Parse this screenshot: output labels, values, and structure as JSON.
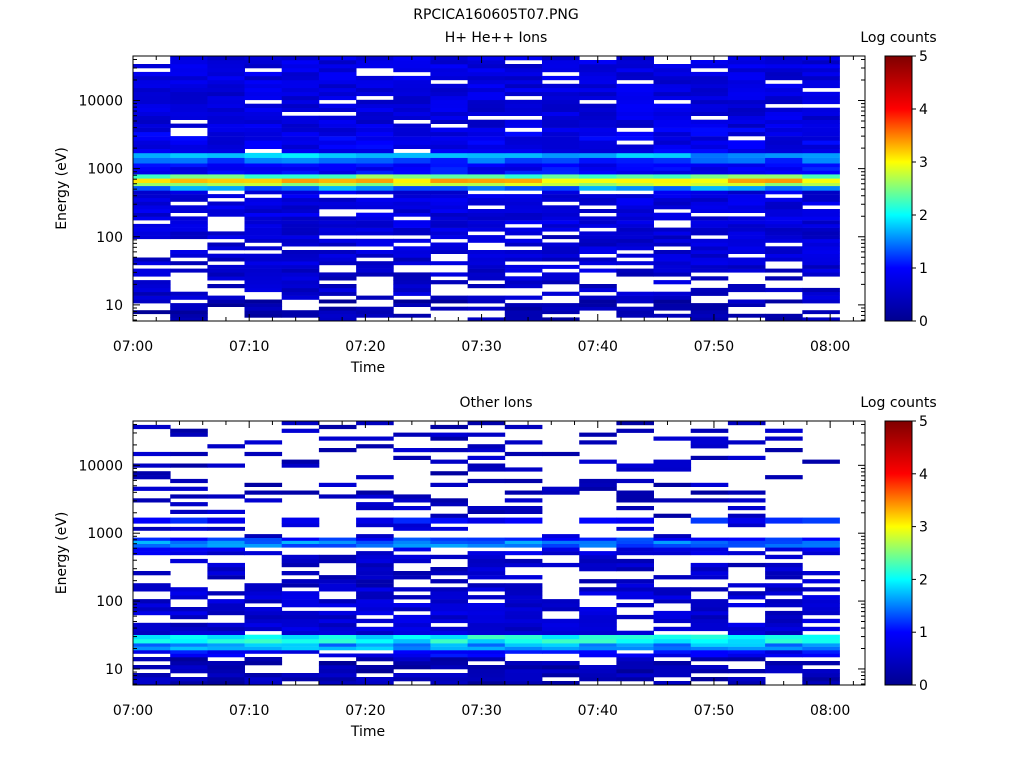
{
  "page_title": "RPCICA160605T07.PNG",
  "colorscale": [
    "#00008f",
    "#0000ff",
    "#00ffff",
    "#ffff00",
    "#ff0000",
    "#7f0000"
  ],
  "chart_data": [
    {
      "type": "heatmap",
      "title": "H+ He++ Ions",
      "xlabel": "Time",
      "ylabel": "Energy (eV)",
      "colorbar_label": "Log counts",
      "yscale": "log",
      "ylim": [
        5.8,
        45000
      ],
      "yticks": [
        10,
        100,
        1000,
        10000
      ],
      "ytick_labels": [
        "10",
        "100",
        "1000",
        "10000"
      ],
      "xlim": [
        "07:00",
        "08:03"
      ],
      "xticks": [
        "07:00",
        "07:10",
        "07:20",
        "07:30",
        "07:40",
        "07:50",
        "08:00"
      ],
      "time_bins": 19,
      "time_bin_minutes": 3.2,
      "clim": [
        0,
        5
      ],
      "cbar_ticks": [
        "0",
        "1",
        "2",
        "3",
        "4",
        "5"
      ],
      "bands": [
        {
          "emin": 5.8,
          "emax": 12,
          "mean": 0.3,
          "fill": 0.6
        },
        {
          "emin": 12,
          "emax": 30,
          "mean": 0.55,
          "fill": 0.6
        },
        {
          "emin": 30,
          "emax": 120,
          "mean": 0.6,
          "fill": 0.72
        },
        {
          "emin": 120,
          "emax": 480,
          "mean": 0.7,
          "fill": 0.85
        },
        {
          "emin": 480,
          "emax": 560,
          "mean": 1.5,
          "fill": 1.0
        },
        {
          "emin": 560,
          "emax": 620,
          "mean": 2.7,
          "fill": 1.0
        },
        {
          "emin": 620,
          "emax": 720,
          "mean": 3.2,
          "fill": 1.0
        },
        {
          "emin": 720,
          "emax": 830,
          "mean": 2.4,
          "fill": 1.0
        },
        {
          "emin": 830,
          "emax": 1200,
          "mean": 0.9,
          "fill": 1.0
        },
        {
          "emin": 1200,
          "emax": 1450,
          "mean": 1.3,
          "fill": 1.0
        },
        {
          "emin": 1450,
          "emax": 1700,
          "mean": 1.7,
          "fill": 1.0
        },
        {
          "emin": 1700,
          "emax": 4000,
          "mean": 0.8,
          "fill": 0.9
        },
        {
          "emin": 4000,
          "emax": 45000,
          "mean": 0.7,
          "fill": 0.88
        }
      ]
    },
    {
      "type": "heatmap",
      "title": "Other Ions",
      "xlabel": "Time",
      "ylabel": "Energy (eV)",
      "colorbar_label": "Log counts",
      "yscale": "log",
      "ylim": [
        5.8,
        45000
      ],
      "yticks": [
        10,
        100,
        1000,
        10000
      ],
      "ytick_labels": [
        "10",
        "100",
        "1000",
        "10000"
      ],
      "xlim": [
        "07:00",
        "08:03"
      ],
      "xticks": [
        "07:00",
        "07:10",
        "07:20",
        "07:30",
        "07:40",
        "07:50",
        "08:00"
      ],
      "time_bins": 19,
      "time_bin_minutes": 3.2,
      "clim": [
        0,
        5
      ],
      "cbar_ticks": [
        "0",
        "1",
        "2",
        "3",
        "4",
        "5"
      ],
      "bands": [
        {
          "emin": 5.8,
          "emax": 15,
          "mean": 0.3,
          "fill": 0.75
        },
        {
          "emin": 15,
          "emax": 19,
          "mean": 0.9,
          "fill": 0.9
        },
        {
          "emin": 19,
          "emax": 24,
          "mean": 1.6,
          "fill": 1.0
        },
        {
          "emin": 24,
          "emax": 32,
          "mean": 2.0,
          "fill": 1.0
        },
        {
          "emin": 32,
          "emax": 160,
          "mean": 0.6,
          "fill": 0.7
        },
        {
          "emin": 160,
          "emax": 480,
          "mean": 0.5,
          "fill": 0.5
        },
        {
          "emin": 480,
          "emax": 620,
          "mean": 0.7,
          "fill": 0.6
        },
        {
          "emin": 620,
          "emax": 700,
          "mean": 1.4,
          "fill": 1.0
        },
        {
          "emin": 700,
          "emax": 780,
          "mean": 1.5,
          "fill": 1.0
        },
        {
          "emin": 780,
          "emax": 860,
          "mean": 1.1,
          "fill": 1.0
        },
        {
          "emin": 860,
          "emax": 1400,
          "mean": 0.5,
          "fill": 0.25
        },
        {
          "emin": 1400,
          "emax": 1700,
          "mean": 1.0,
          "fill": 0.9
        },
        {
          "emin": 1700,
          "emax": 45000,
          "mean": 0.4,
          "fill": 0.22
        }
      ]
    }
  ]
}
